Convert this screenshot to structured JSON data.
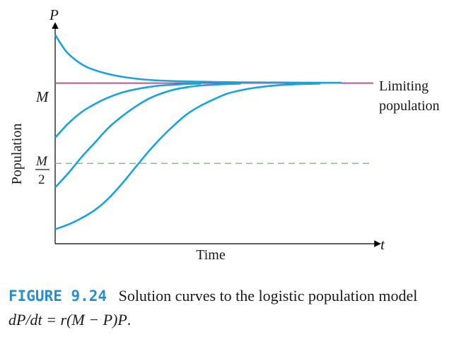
{
  "chart_data": {
    "type": "line",
    "xlabel": "Time",
    "ylabel": "Population",
    "x_axis_symbol": "t",
    "y_axis_symbol": "P",
    "y_tick_labels": {
      "M": "M",
      "half_top": "M",
      "half_bottom": "2"
    },
    "annotation_line1": "Limiting",
    "annotation_line2": "population",
    "reference_lines": [
      {
        "name": "M",
        "y": 1.0,
        "style": "solid",
        "color": "#c23a86"
      },
      {
        "name": "M/2",
        "y": 0.5,
        "style": "dashed",
        "color": "#88c088"
      }
    ],
    "xlim": [
      0,
      1.2
    ],
    "ylim": [
      0,
      1.35
    ],
    "curve_color": "#1aa3d6",
    "series": [
      {
        "x": [
          0,
          0.04,
          0.08,
          0.12,
          0.18,
          0.25,
          0.35,
          0.5,
          0.7,
          0.9,
          1.0,
          1.08
        ],
        "values": [
          1.3,
          1.2,
          1.14,
          1.1,
          1.065,
          1.04,
          1.02,
          1.01,
          1.005,
          1.003,
          1.002,
          1.002
        ]
      },
      {
        "x": [
          0,
          0.05,
          0.1,
          0.15,
          0.2,
          0.25,
          0.3,
          0.35,
          0.4,
          0.45,
          0.5,
          0.55
        ],
        "values": [
          0.66,
          0.75,
          0.82,
          0.87,
          0.91,
          0.94,
          0.96,
          0.975,
          0.985,
          0.99,
          0.995,
          0.997
        ]
      },
      {
        "x": [
          0,
          0.05,
          0.1,
          0.15,
          0.2,
          0.25,
          0.3,
          0.35,
          0.4,
          0.45,
          0.5,
          0.55,
          0.6,
          0.65,
          0.7
        ],
        "values": [
          0.35,
          0.44,
          0.54,
          0.63,
          0.72,
          0.79,
          0.85,
          0.9,
          0.935,
          0.96,
          0.975,
          0.985,
          0.99,
          0.994,
          0.997
        ]
      },
      {
        "x": [
          0,
          0.05,
          0.1,
          0.15,
          0.2,
          0.25,
          0.3,
          0.35,
          0.4,
          0.45,
          0.5,
          0.55,
          0.6,
          0.65,
          0.7,
          0.75,
          0.8,
          0.85,
          0.9,
          0.95,
          1.0
        ],
        "values": [
          0.09,
          0.12,
          0.16,
          0.21,
          0.28,
          0.37,
          0.47,
          0.57,
          0.66,
          0.74,
          0.81,
          0.86,
          0.9,
          0.935,
          0.955,
          0.97,
          0.98,
          0.988,
          0.992,
          0.995,
          0.997
        ]
      }
    ],
    "grid": false,
    "legend": "none"
  },
  "caption": {
    "figure_label": "FIGURE 9.24",
    "text_part1": "Solution curves to the logistic population model ",
    "equation": "dP/dt = r(M − P)P",
    "text_end": "."
  }
}
